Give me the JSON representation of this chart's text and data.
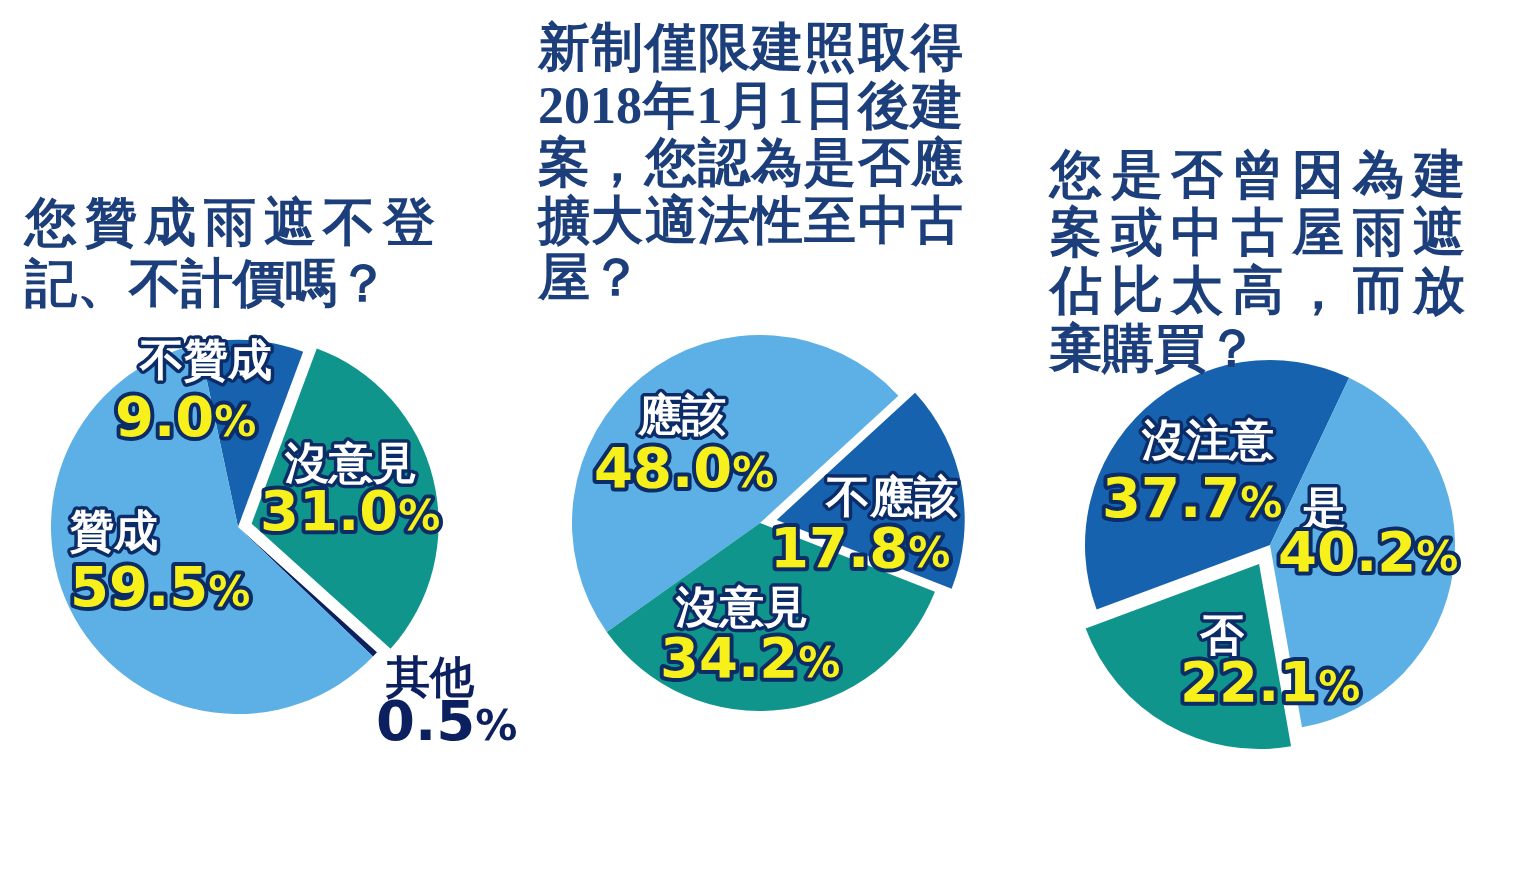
{
  "chart_data": [
    {
      "type": "pie",
      "title": "您贊成雨遮不登記、不計價嗎？",
      "categories": [
        "不贊成",
        "沒意見",
        "其他",
        "贊成"
      ],
      "values": [
        9.0,
        31.0,
        0.5,
        59.5
      ],
      "colors": [
        "#1762ae",
        "#0f958b",
        "#0c1f5e",
        "#5cb0e5"
      ],
      "value_labels": [
        "9.0%",
        "31.0%",
        "0.5%",
        "59.5%"
      ]
    },
    {
      "type": "pie",
      "title": "新制僅限建照取得2018年1月1日後建案，您認為是否應擴大適法性至中古屋？",
      "categories": [
        "應該",
        "不應該",
        "沒意見"
      ],
      "values": [
        48.0,
        17.8,
        34.2
      ],
      "colors": [
        "#5cb0e5",
        "#1762ae",
        "#0f958b"
      ],
      "value_labels": [
        "48.0%",
        "17.8%",
        "34.2%"
      ]
    },
    {
      "type": "pie",
      "title": "您是否曾因為建案或中古屋雨遮佔比太高，而放棄購買？",
      "categories": [
        "沒注意",
        "是",
        "否"
      ],
      "values": [
        37.7,
        40.2,
        22.1
      ],
      "colors": [
        "#1762ae",
        "#5cb0e5",
        "#0f958b"
      ],
      "value_labels": [
        "37.7%",
        "40.2%",
        "22.1%"
      ]
    }
  ]
}
